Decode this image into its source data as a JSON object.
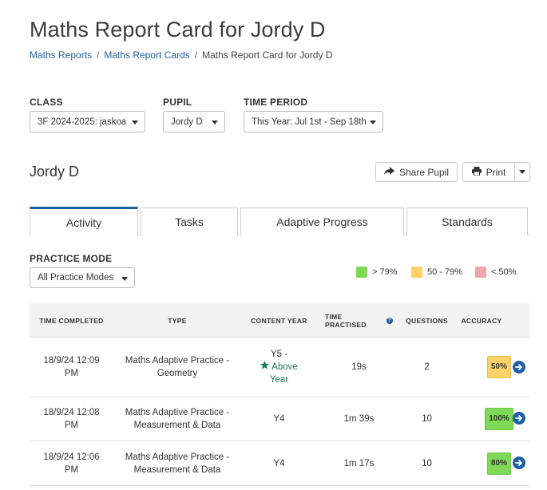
{
  "page": {
    "title": "Maths Report Card for Jordy D"
  },
  "breadcrumb": [
    {
      "label": "Maths Reports"
    },
    {
      "label": "Maths Report Cards"
    },
    {
      "label": "Maths Report Card for Jordy D"
    }
  ],
  "filters": {
    "class": {
      "label": "CLASS",
      "value": "3F 2024-2025: jaskoa"
    },
    "pupil": {
      "label": "PUPIL",
      "value": "Jordy D"
    },
    "time_period": {
      "label": "TIME PERIOD",
      "value": "This Year: Jul 1st - Sep 18th"
    }
  },
  "pupil_name": "Jordy D",
  "actions": {
    "share": "Share Pupil",
    "print": "Print"
  },
  "tabs": [
    {
      "label": "Activity",
      "active": true
    },
    {
      "label": "Tasks",
      "active": false
    },
    {
      "label": "Adaptive Progress",
      "active": false
    },
    {
      "label": "Standards",
      "active": false
    }
  ],
  "practice_mode": {
    "label": "PRACTICE MODE",
    "value": "All Practice Modes"
  },
  "legend": [
    {
      "label": "> 79%",
      "color": "#7ed957"
    },
    {
      "label": "50 - 79%",
      "color": "#ffd166"
    },
    {
      "label": "< 50%",
      "color": "#f4a3a8"
    }
  ],
  "table": {
    "columns": [
      "TIME COMPLETED",
      "TYPE",
      "CONTENT YEAR",
      "TIME PRACTISED",
      "QUESTIONS",
      "ACCURACY"
    ],
    "rows": [
      {
        "time_line1": "18/9/24 12:09",
        "time_line2": "PM",
        "type_line1": "Maths Adaptive Practice -",
        "type_line2": "Geometry",
        "content_year": "Y5 -",
        "content_year_note_line1": "Above",
        "content_year_note_line2": "Year",
        "time_practised": "19s",
        "questions": "2",
        "accuracy": "50%",
        "accuracy_color": "#ffd166"
      },
      {
        "time_line1": "18/9/24 12:08",
        "time_line2": "PM",
        "type_line1": "Maths Adaptive Practice -",
        "type_line2": "Measurement & Data",
        "content_year": "Y4",
        "content_year_note_line1": "",
        "content_year_note_line2": "",
        "time_practised": "1m 39s",
        "questions": "10",
        "accuracy": "100%",
        "accuracy_color": "#7ed957"
      },
      {
        "time_line1": "18/9/24 12:06",
        "time_line2": "PM",
        "type_line1": "Maths Adaptive Practice -",
        "type_line2": "Measurement & Data",
        "content_year": "Y4",
        "content_year_note_line1": "",
        "content_year_note_line2": "",
        "time_practised": "1m 17s",
        "questions": "10",
        "accuracy": "80%",
        "accuracy_color": "#7ed957"
      }
    ]
  },
  "colors": {
    "accent": "#1f5fa3",
    "above_year": "#1b7a5a"
  }
}
